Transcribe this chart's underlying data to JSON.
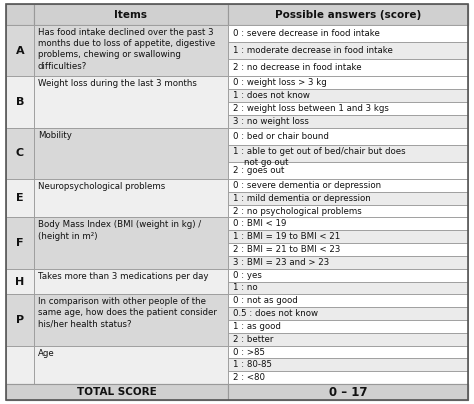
{
  "title_col1": "Items",
  "title_col2": "Possible answers (score)",
  "header_bg": "#d0d0d0",
  "row_bg_dark": "#d8d8d8",
  "row_bg_light": "#efefef",
  "answer_bg_white": "#ffffff",
  "answer_bg_gray": "#ebebeb",
  "border_color": "#999999",
  "text_color": "#1a1a1a",
  "rows": [
    {
      "letter": "A",
      "item": "Has food intake declined over the past 3\nmonths due to loss of appetite, digestive\nproblems, chewing or swallowing\ndifficulties?",
      "answers": [
        "0 : severe decrease in food intake",
        "1 : moderate decrease in food intake",
        "2 : no decrease in food intake"
      ]
    },
    {
      "letter": "B",
      "item": "Weight loss during the last 3 months",
      "answers": [
        "0 : weight loss > 3 kg",
        "1 : does not know",
        "2 : weight loss between 1 and 3 kgs",
        "3 : no weight loss"
      ]
    },
    {
      "letter": "C",
      "item": "Mobility",
      "answers": [
        "0 : bed or chair bound",
        "1 : able to get out of bed/chair but does\n    not go out",
        "2 : goes out"
      ]
    },
    {
      "letter": "E",
      "item": "Neuropsychological problems",
      "answers": [
        "0 : severe dementia or depression",
        "1 : mild dementia or depression",
        "2 : no psychological problems"
      ]
    },
    {
      "letter": "F",
      "item": "Body Mass Index (BMI (weight in kg) /\n(height in m²)",
      "answers": [
        "0 : BMI < 19",
        "1 : BMI = 19 to BMI < 21",
        "2 : BMI = 21 to BMI < 23",
        "3 : BMI = 23 and > 23"
      ]
    },
    {
      "letter": "H",
      "item": "Takes more than 3 medications per day",
      "answers": [
        "0 : yes",
        "1 : no"
      ]
    },
    {
      "letter": "P",
      "item": "In comparison with other people of the\nsame age, how does the patient consider\nhis/her health status?",
      "answers": [
        "0 : not as good",
        "0.5 : does not know",
        "1 : as good",
        "2 : better"
      ]
    },
    {
      "letter": "",
      "item": "Age",
      "answers": [
        "0 : >85",
        "1 : 80-85",
        "2 : <80"
      ]
    }
  ],
  "footer_label": "TOTAL SCORE",
  "footer_value": "0 – 17"
}
